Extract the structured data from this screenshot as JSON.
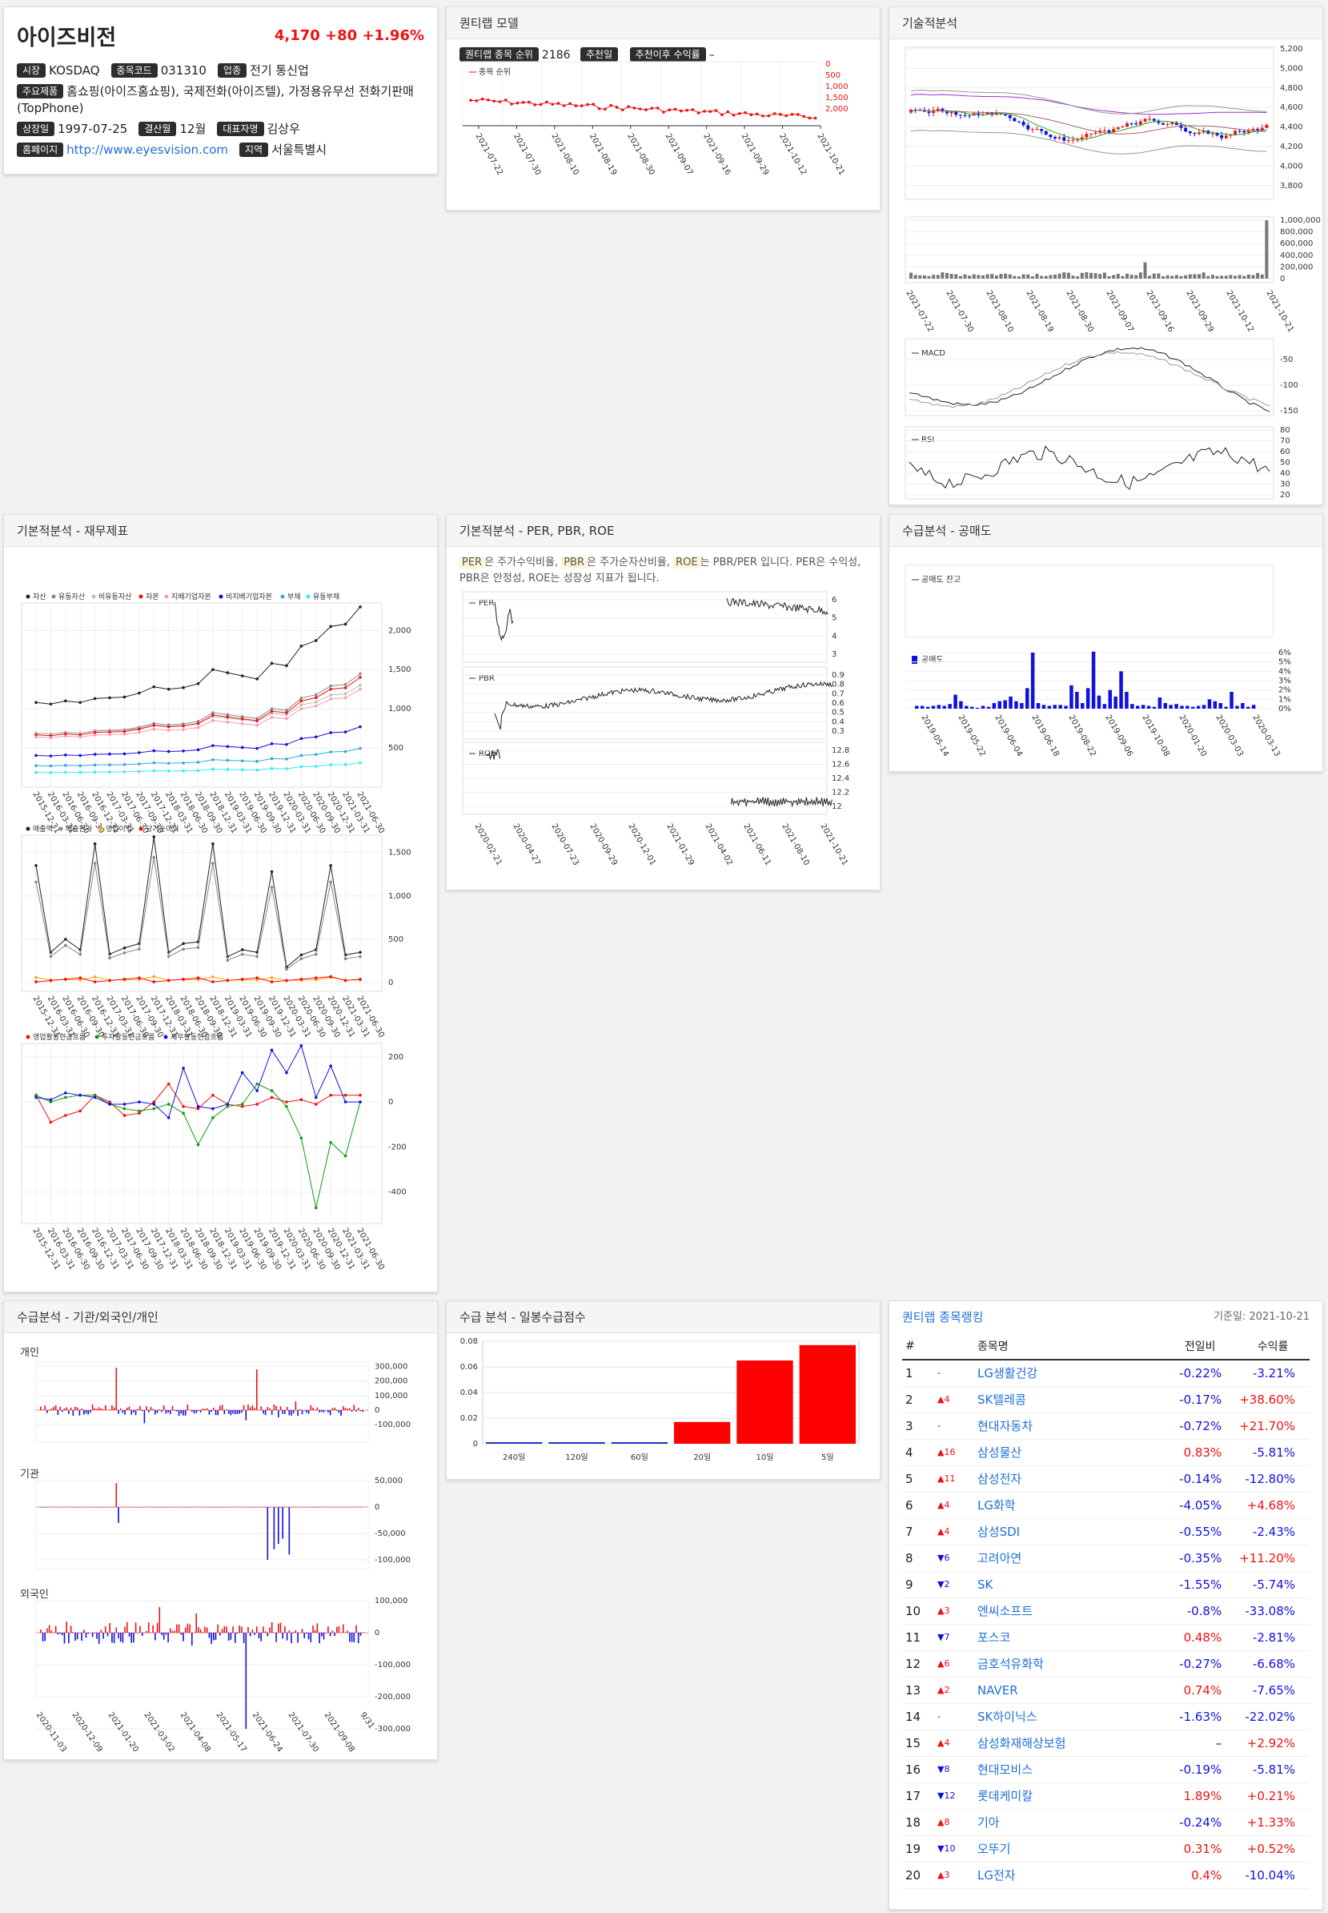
{
  "stock": {
    "name": "아이즈비전",
    "price": "4,170",
    "change": "+80",
    "pct": "+1.96%",
    "market_label": "시장",
    "market": "KOSDAQ",
    "code_label": "종목코드",
    "code": "031310",
    "sector_label": "업종",
    "sector": "전기 통신업",
    "products_label": "주요제품",
    "products": "홈쇼핑(아이즈홈쇼핑), 국제전화(아이즈텔), 가정용유무선 전화기판매(TopPhone)",
    "listed_label": "상장일",
    "listed": "1997-07-25",
    "settle_label": "결산월",
    "settle": "12월",
    "ceo_label": "대표자명",
    "ceo": "김상우",
    "home_label": "홈페이지",
    "home": "http://www.eyesvision.com",
    "region_label": "지역",
    "region": "서울특별시"
  },
  "quant": {
    "title": "퀀티랩 모델",
    "rank_label": "퀀티랩 종목 순위",
    "rank": "2186",
    "rec_label": "추천일",
    "rec_ret_label": "추천이후 수익률",
    "rec_ret": "–",
    "legend": "종목 순위"
  },
  "tech": {
    "title": "기술적분석",
    "macd": "MACD",
    "rsi": "RSI"
  },
  "fund": {
    "title": "기본적분석 - 재무제표"
  },
  "per": {
    "title": "기본적분석 - PER, PBR, ROE",
    "desc_parts": [
      "PER",
      "은 주가수익비율, ",
      "PBR",
      "은 주가순자산비율, ",
      "ROE",
      "는 PBR/PER 입니다. PER은 수익성, PBR은 안정성, ROE는 성장성 지표가 됩니다."
    ],
    "per": "PER",
    "pbr": "PBR",
    "roe": "ROE"
  },
  "short": {
    "title": "수급분석 - 공매도",
    "balance": "공매도 잔고",
    "short": "공매도"
  },
  "flow": {
    "title": "수급분석 - 기관/외국인/개인",
    "indiv": "개인",
    "inst": "기관",
    "foreign": "외국인"
  },
  "score": {
    "title": "수급 분석 - 일봉수급점수"
  },
  "ranking": {
    "title": "퀀티랩 종목랭킹",
    "date": "기준일: 2021-10-21",
    "headers": [
      "#",
      "종목명",
      "전일비",
      "수익률"
    ],
    "rows": [
      [
        "1",
        "-",
        "LG생활건강",
        "-0.22%",
        "-3.21%"
      ],
      [
        "2",
        "▲4",
        "SK텔레콤",
        "-0.17%",
        "+38.60%"
      ],
      [
        "3",
        "-",
        "현대자동차",
        "-0.72%",
        "+21.70%"
      ],
      [
        "4",
        "▲16",
        "삼성물산",
        "0.83%",
        "-5.81%"
      ],
      [
        "5",
        "▲11",
        "삼성전자",
        "-0.14%",
        "-12.80%"
      ],
      [
        "6",
        "▲4",
        "LG화학",
        "-4.05%",
        "+4.68%"
      ],
      [
        "7",
        "▲4",
        "삼성SDI",
        "-0.55%",
        "-2.43%"
      ],
      [
        "8",
        "▼6",
        "고려아연",
        "-0.35%",
        "+11.20%"
      ],
      [
        "9",
        "▼2",
        "SK",
        "-1.55%",
        "-5.74%"
      ],
      [
        "10",
        "▲3",
        "엔씨소프트",
        "-0.8%",
        "-33.08%"
      ],
      [
        "11",
        "▼7",
        "포스코",
        "0.48%",
        "-2.81%"
      ],
      [
        "12",
        "▲6",
        "금호석유화학",
        "-0.27%",
        "-6.68%"
      ],
      [
        "13",
        "▲2",
        "NAVER",
        "0.74%",
        "-7.65%"
      ],
      [
        "14",
        "-",
        "SK하이닉스",
        "-1.63%",
        "-22.02%"
      ],
      [
        "15",
        "▲4",
        "삼성화재해상보험",
        "–",
        "+2.92%"
      ],
      [
        "16",
        "▼8",
        "현대모비스",
        "-0.19%",
        "-5.81%"
      ],
      [
        "17",
        "▼12",
        "롯데케미칼",
        "1.89%",
        "+0.21%"
      ],
      [
        "18",
        "▲8",
        "기아",
        "-0.24%",
        "+1.33%"
      ],
      [
        "19",
        "▼10",
        "오뚜기",
        "0.31%",
        "+0.52%"
      ],
      [
        "20",
        "▲3",
        "LG전자",
        "0.4%",
        "-10.04%"
      ]
    ]
  },
  "chart_data": [
    {
      "type": "bar",
      "title": "수급 분석 - 일봉수급점수",
      "categories": [
        "240일",
        "120일",
        "60일",
        "20일",
        "10일",
        "5일"
      ],
      "values": [
        0.0,
        0.0,
        0.0,
        0.017,
        0.065,
        0.077
      ],
      "ylim": [
        0,
        0.08
      ],
      "yticks": [
        "0",
        "0.02",
        "0.04",
        "0.06",
        "0.08"
      ]
    },
    {
      "type": "line",
      "title": "종목 순위",
      "x": [
        "2021-07-22",
        "2021-07-30",
        "2021-08-10",
        "2021-08-19",
        "2021-08-30",
        "2021-09-07",
        "2021-09-16",
        "2021-09-29",
        "2021-10-12",
        "2021-10-21"
      ],
      "yticks": [
        "0",
        "500",
        "1,000",
        "1,500",
        "2,000"
      ]
    }
  ]
}
